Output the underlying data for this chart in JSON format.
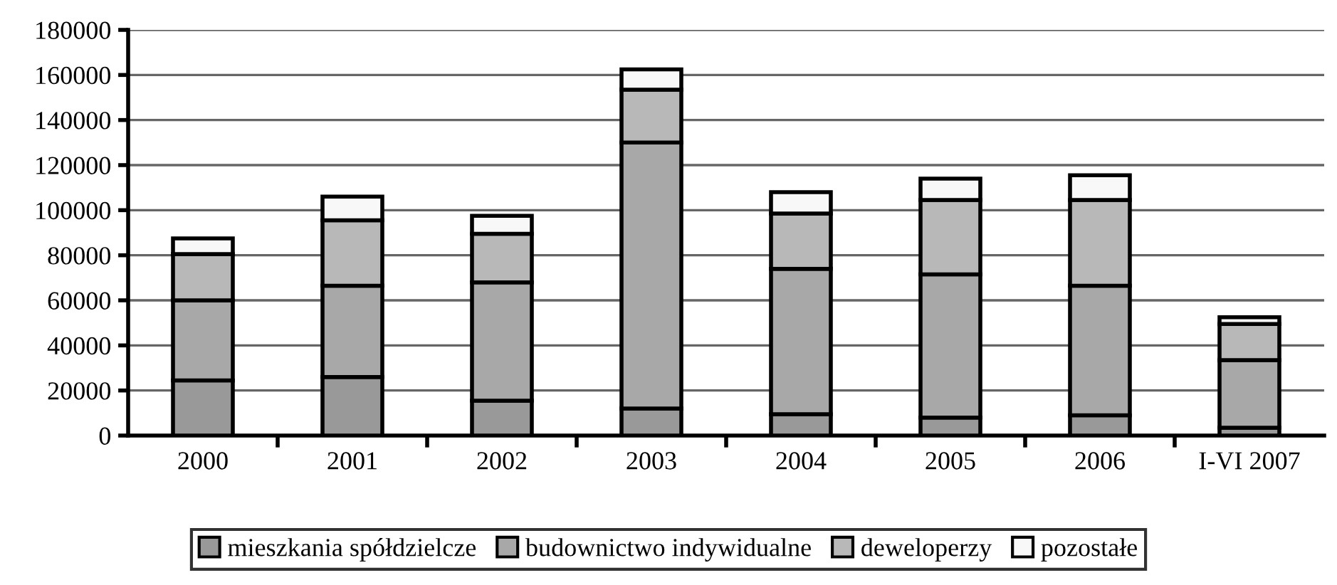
{
  "chart_data": {
    "type": "bar",
    "stacked": true,
    "categories": [
      "2000",
      "2001",
      "2002",
      "2003",
      "2004",
      "2005",
      "2006",
      "I-VI 2007"
    ],
    "series": [
      {
        "name": "mieszkania spółdzielcze",
        "color": "#999999",
        "values": [
          24500,
          26000,
          15500,
          12000,
          9500,
          8000,
          9000,
          3500
        ]
      },
      {
        "name": "budownictwo indywidualne",
        "color": "#a8a8a8",
        "values": [
          35500,
          40500,
          52500,
          118000,
          64500,
          63500,
          57500,
          30000
        ]
      },
      {
        "name": "deweloperzy",
        "color": "#b8b8b8",
        "values": [
          20500,
          29000,
          21500,
          23500,
          24500,
          33000,
          38000,
          16000
        ]
      },
      {
        "name": "pozostałe",
        "color": "#f8f8f8",
        "values": [
          7000,
          10500,
          8000,
          9000,
          9500,
          9500,
          11000,
          3000
        ]
      }
    ],
    "ylim": [
      0,
      180000
    ],
    "yticks": [
      0,
      20000,
      40000,
      60000,
      80000,
      100000,
      120000,
      140000,
      160000,
      180000
    ],
    "grid": "y",
    "legend": "bottom"
  }
}
